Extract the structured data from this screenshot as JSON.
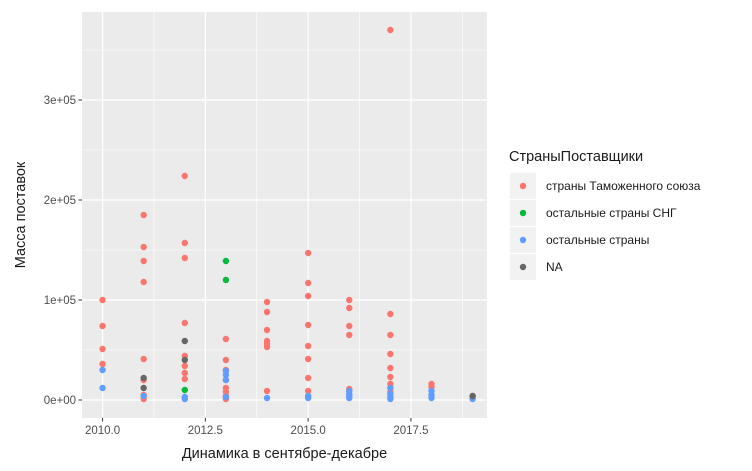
{
  "chart_data": {
    "type": "scatter",
    "title": "",
    "xlabel": "Динамика в сентябре-декабре",
    "ylabel": "Масса поставок",
    "xlim": [
      2009.5,
      2019.35
    ],
    "ylim": [
      -18000,
      388000
    ],
    "x_ticks": [
      2010,
      2012.5,
      2015,
      2017.5
    ],
    "x_tick_labels": [
      "2010.0",
      "2012.5",
      "2015.0",
      "2017.5"
    ],
    "y_ticks": [
      0,
      100000,
      200000,
      300000
    ],
    "y_tick_labels": [
      "0e+00",
      "1e+05",
      "2e+05",
      "3e+05"
    ],
    "grid": true,
    "legend": {
      "title": "СтраныПоставщики",
      "placement": "right"
    },
    "series": [
      {
        "name": "страны Таможенного союза",
        "color": "#F8766D",
        "points": [
          [
            2010,
            100000
          ],
          [
            2010,
            74000
          ],
          [
            2010,
            51000
          ],
          [
            2010,
            36000
          ],
          [
            2011,
            185000
          ],
          [
            2011,
            153000
          ],
          [
            2011,
            139000
          ],
          [
            2011,
            118000
          ],
          [
            2011,
            41000
          ],
          [
            2011,
            20000
          ],
          [
            2011,
            5000
          ],
          [
            2011,
            1000
          ],
          [
            2012,
            224000
          ],
          [
            2012,
            157000
          ],
          [
            2012,
            142000
          ],
          [
            2012,
            77000
          ],
          [
            2012,
            44000
          ],
          [
            2012,
            34000
          ],
          [
            2012,
            27000
          ],
          [
            2012,
            21000
          ],
          [
            2013,
            61000
          ],
          [
            2013,
            40000
          ],
          [
            2013,
            30000
          ],
          [
            2013,
            20000
          ],
          [
            2013,
            12000
          ],
          [
            2013,
            8000
          ],
          [
            2013,
            4000
          ],
          [
            2013,
            1000
          ],
          [
            2014,
            98000
          ],
          [
            2014,
            88000
          ],
          [
            2014,
            70000
          ],
          [
            2014,
            59000
          ],
          [
            2014,
            56000
          ],
          [
            2014,
            53000
          ],
          [
            2014,
            9000
          ],
          [
            2015,
            147000
          ],
          [
            2015,
            117000
          ],
          [
            2015,
            104000
          ],
          [
            2015,
            75000
          ],
          [
            2015,
            54000
          ],
          [
            2015,
            41000
          ],
          [
            2015,
            22000
          ],
          [
            2015,
            9000
          ],
          [
            2016,
            100000
          ],
          [
            2016,
            92000
          ],
          [
            2016,
            74000
          ],
          [
            2016,
            65000
          ],
          [
            2016,
            11000
          ],
          [
            2017,
            370000
          ],
          [
            2017,
            86000
          ],
          [
            2017,
            65000
          ],
          [
            2017,
            46000
          ],
          [
            2017,
            32000
          ],
          [
            2017,
            23000
          ],
          [
            2017,
            16000
          ],
          [
            2017,
            12000
          ],
          [
            2017,
            8000
          ],
          [
            2018,
            16000
          ],
          [
            2018,
            13000
          ],
          [
            2019,
            4000
          ]
        ]
      },
      {
        "name": "остальные страны СНГ",
        "color": "#00BA38",
        "points": [
          [
            2012,
            10000
          ],
          [
            2013,
            139000
          ],
          [
            2013,
            120000
          ]
        ]
      },
      {
        "name": "остальные страны",
        "color": "#619CFF",
        "points": [
          [
            2010,
            30000
          ],
          [
            2010,
            12000
          ],
          [
            2011,
            4000
          ],
          [
            2012,
            3000
          ],
          [
            2012,
            1000
          ],
          [
            2013,
            29000
          ],
          [
            2013,
            25000
          ],
          [
            2013,
            20000
          ],
          [
            2013,
            3000
          ],
          [
            2014,
            2000
          ],
          [
            2015,
            4000
          ],
          [
            2015,
            2000
          ],
          [
            2016,
            9000
          ],
          [
            2016,
            6000
          ],
          [
            2016,
            4000
          ],
          [
            2016,
            2000
          ],
          [
            2017,
            12000
          ],
          [
            2017,
            6000
          ],
          [
            2017,
            3000
          ],
          [
            2017,
            1000
          ],
          [
            2018,
            9000
          ],
          [
            2018,
            5000
          ],
          [
            2018,
            2000
          ],
          [
            2019,
            3000
          ],
          [
            2019,
            1000
          ]
        ]
      },
      {
        "name": "NA",
        "color": "#666666",
        "points": [
          [
            2011,
            22000
          ],
          [
            2011,
            12000
          ],
          [
            2012,
            59000
          ],
          [
            2012,
            40000
          ],
          [
            2019,
            4000
          ]
        ]
      }
    ]
  }
}
